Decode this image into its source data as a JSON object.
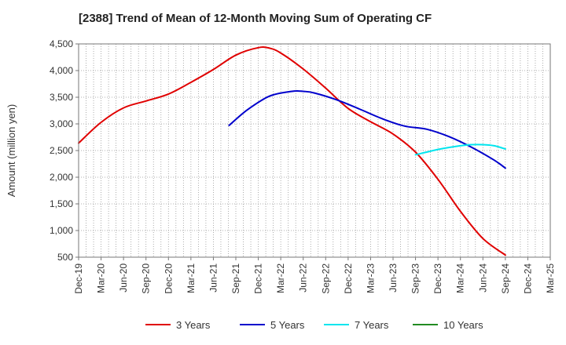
{
  "chart_data": {
    "type": "line",
    "title": "[2388]  Trend of Mean of 12-Month Moving Sum of Operating CF",
    "xlabel": "",
    "ylabel": "Amount (million yen)",
    "ylim": [
      500,
      4500
    ],
    "yticks": [
      500,
      1000,
      1500,
      2000,
      2500,
      3000,
      3500,
      4000,
      4500
    ],
    "ytick_labels": [
      "500",
      "1,000",
      "1,500",
      "2,000",
      "2,500",
      "3,000",
      "3,500",
      "4,000",
      "4,500"
    ],
    "x_ticks": [
      "Dec-19",
      "Mar-20",
      "Jun-20",
      "Sep-20",
      "Dec-20",
      "Mar-21",
      "Jun-21",
      "Sep-21",
      "Dec-21",
      "Mar-22",
      "Jun-22",
      "Sep-22",
      "Dec-22",
      "Mar-23",
      "Jun-23",
      "Sep-23",
      "Dec-23",
      "Mar-24",
      "Jun-24",
      "Sep-24",
      "Dec-24",
      "Mar-25"
    ],
    "grid": true,
    "legend_position": "bottom",
    "series": [
      {
        "name": "3 Years",
        "color": "#e00000",
        "x": [
          0,
          1,
          2,
          3,
          4,
          5,
          6,
          7,
          8,
          8.5,
          9,
          10,
          11,
          12,
          13,
          14,
          15,
          16,
          17,
          18,
          19
        ],
        "values": [
          2640,
          3030,
          3300,
          3430,
          3560,
          3780,
          4020,
          4290,
          4430,
          4420,
          4330,
          4030,
          3670,
          3290,
          3040,
          2810,
          2470,
          1960,
          1360,
          850,
          540
        ]
      },
      {
        "name": "5 Years",
        "color": "#0000cc",
        "x": [
          6.7,
          7.5,
          8.5,
          9.5,
          10,
          10.5,
          11.5,
          12.5,
          13.5,
          14.5,
          15.5,
          16.5,
          17.5,
          18.5,
          19
        ],
        "values": [
          2970,
          3260,
          3520,
          3610,
          3610,
          3580,
          3450,
          3280,
          3100,
          2960,
          2900,
          2760,
          2560,
          2320,
          2170
        ]
      },
      {
        "name": "7 Years",
        "color": "#00e5ee",
        "x": [
          15,
          16,
          17,
          17.5,
          18,
          18.5,
          19
        ],
        "values": [
          2420,
          2520,
          2590,
          2610,
          2610,
          2590,
          2530
        ]
      },
      {
        "name": "10 Years",
        "color": "#228b22",
        "x": [],
        "values": []
      }
    ]
  }
}
